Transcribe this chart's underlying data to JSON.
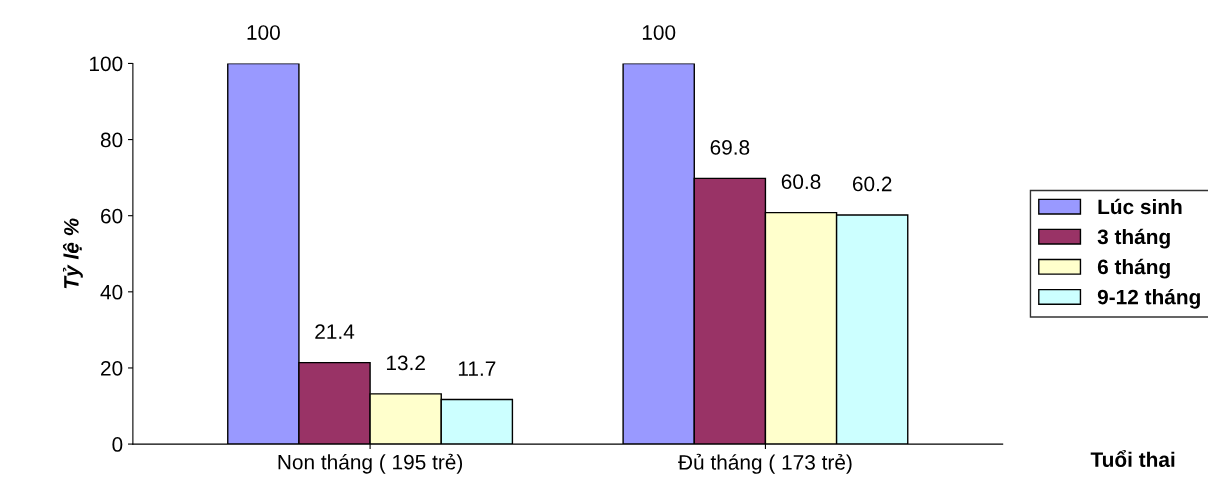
{
  "chart_data": {
    "type": "bar",
    "xlabel": "Tuổi thai",
    "ylabel": "Tỷ lệ %",
    "categories": [
      "Non tháng ( 195 trẻ)",
      "Đủ tháng ( 173 trẻ)"
    ],
    "series": [
      {
        "name": "Lúc sinh",
        "color": "#9999ff",
        "values": [
          100,
          100
        ]
      },
      {
        "name": "3 tháng",
        "color": "#993366",
        "values": [
          21.4,
          69.8
        ]
      },
      {
        "name": "6 tháng",
        "color": "#ffffcc",
        "values": [
          13.2,
          60.8
        ]
      },
      {
        "name": "9-12 tháng",
        "color": "#ccffff",
        "values": [
          11.7,
          60.2
        ]
      }
    ],
    "ylim": [
      0,
      100
    ],
    "yticks": [
      0,
      20,
      40,
      60,
      80,
      100
    ],
    "grid": false,
    "legend": "right",
    "data_labels": true
  }
}
